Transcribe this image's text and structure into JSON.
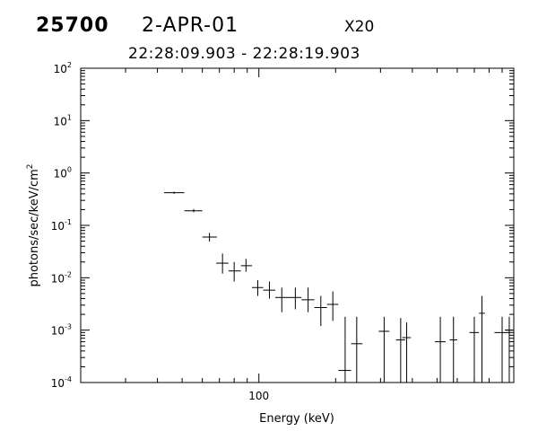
{
  "header": {
    "burst_id": "25700",
    "date": "2-APR-01",
    "scale_label": "X20",
    "time_range": "22:28:09.903  -  22:28:19.903"
  },
  "chart_data": {
    "type": "scatter",
    "title": "",
    "xlabel": "Energy (keV)",
    "ylabel": "photons/sec/keV/cm",
    "ylabel_superscript": "2",
    "x_scale": "log",
    "y_scale": "log",
    "xlim": [
      20,
      1000
    ],
    "ylim": [
      0.0001,
      100
    ],
    "x_tick_labels": [
      {
        "value": 100,
        "label": "100"
      }
    ],
    "y_tick_labels": [
      {
        "value": 0.0001,
        "base": "10",
        "exp": "-4"
      },
      {
        "value": 0.001,
        "base": "10",
        "exp": "-3"
      },
      {
        "value": 0.01,
        "base": "10",
        "exp": "-2"
      },
      {
        "value": 0.1,
        "base": "10",
        "exp": "-1"
      },
      {
        "value": 1,
        "base": "10",
        "exp": "0"
      },
      {
        "value": 10,
        "base": "10",
        "exp": "1"
      },
      {
        "value": 100,
        "base": "10",
        "exp": "2"
      }
    ],
    "grid": false,
    "legend": "none",
    "points": [
      {
        "x": 46.5,
        "y": 0.42,
        "xlo": 42.5,
        "xhi": 51,
        "ylo": 0.4,
        "yhi": 0.44
      },
      {
        "x": 55.5,
        "y": 0.19,
        "xlo": 51,
        "xhi": 60,
        "ylo": 0.178,
        "yhi": 0.205
      },
      {
        "x": 64,
        "y": 0.06,
        "xlo": 60,
        "xhi": 68.5,
        "ylo": 0.049,
        "yhi": 0.072
      },
      {
        "x": 72,
        "y": 0.019,
        "xlo": 68,
        "xhi": 76,
        "ylo": 0.012,
        "yhi": 0.029
      },
      {
        "x": 80,
        "y": 0.0135,
        "xlo": 76,
        "xhi": 85,
        "ylo": 0.0085,
        "yhi": 0.02
      },
      {
        "x": 89,
        "y": 0.017,
        "xlo": 85,
        "xhi": 94,
        "ylo": 0.013,
        "yhi": 0.023
      },
      {
        "x": 99,
        "y": 0.0065,
        "xlo": 94,
        "xhi": 104,
        "ylo": 0.0045,
        "yhi": 0.009
      },
      {
        "x": 110,
        "y": 0.0058,
        "xlo": 104,
        "xhi": 116,
        "ylo": 0.004,
        "yhi": 0.0085
      },
      {
        "x": 123,
        "y": 0.0042,
        "xlo": 116,
        "xhi": 131,
        "ylo": 0.0022,
        "yhi": 0.0065
      },
      {
        "x": 139,
        "y": 0.0042,
        "xlo": 131,
        "xhi": 147,
        "ylo": 0.0025,
        "yhi": 0.0065
      },
      {
        "x": 156,
        "y": 0.0038,
        "xlo": 147,
        "xhi": 165,
        "ylo": 0.0022,
        "yhi": 0.0065
      },
      {
        "x": 175,
        "y": 0.0027,
        "xlo": 165,
        "xhi": 185,
        "ylo": 0.0012,
        "yhi": 0.0045
      },
      {
        "x": 195,
        "y": 0.0031,
        "xlo": 185,
        "xhi": 205,
        "ylo": 0.0015,
        "yhi": 0.0055
      },
      {
        "x": 218,
        "y": 0.00017,
        "xlo": 205,
        "xhi": 230,
        "ylo": 0.0001,
        "yhi": 0.0018
      },
      {
        "x": 242,
        "y": 0.00055,
        "xlo": 230,
        "xhi": 255,
        "ylo": 0.0001,
        "yhi": 0.0018
      },
      {
        "x": 310,
        "y": 0.00095,
        "xlo": 295,
        "xhi": 325,
        "ylo": 0.0001,
        "yhi": 0.0018
      },
      {
        "x": 360,
        "y": 0.00065,
        "xlo": 345,
        "xhi": 375,
        "ylo": 0.0001,
        "yhi": 0.0017
      },
      {
        "x": 380,
        "y": 0.00072,
        "xlo": 365,
        "xhi": 395,
        "ylo": 0.0001,
        "yhi": 0.0014
      },
      {
        "x": 515,
        "y": 0.0006,
        "xlo": 490,
        "xhi": 540,
        "ylo": 0.0001,
        "yhi": 0.0018
      },
      {
        "x": 580,
        "y": 0.00065,
        "xlo": 560,
        "xhi": 600,
        "ylo": 0.0001,
        "yhi": 0.0018
      },
      {
        "x": 700,
        "y": 0.0009,
        "xlo": 670,
        "xhi": 730,
        "ylo": 0.0001,
        "yhi": 0.0018
      },
      {
        "x": 750,
        "y": 0.0021,
        "xlo": 730,
        "xhi": 770,
        "ylo": 0.0001,
        "yhi": 0.0045
      },
      {
        "x": 900,
        "y": 0.0009,
        "xlo": 840,
        "xhi": 960,
        "ylo": 0.0001,
        "yhi": 0.0018
      },
      {
        "x": 960,
        "y": 0.001,
        "xlo": 930,
        "xhi": 990,
        "ylo": 0.0001,
        "yhi": 0.0018
      }
    ]
  }
}
